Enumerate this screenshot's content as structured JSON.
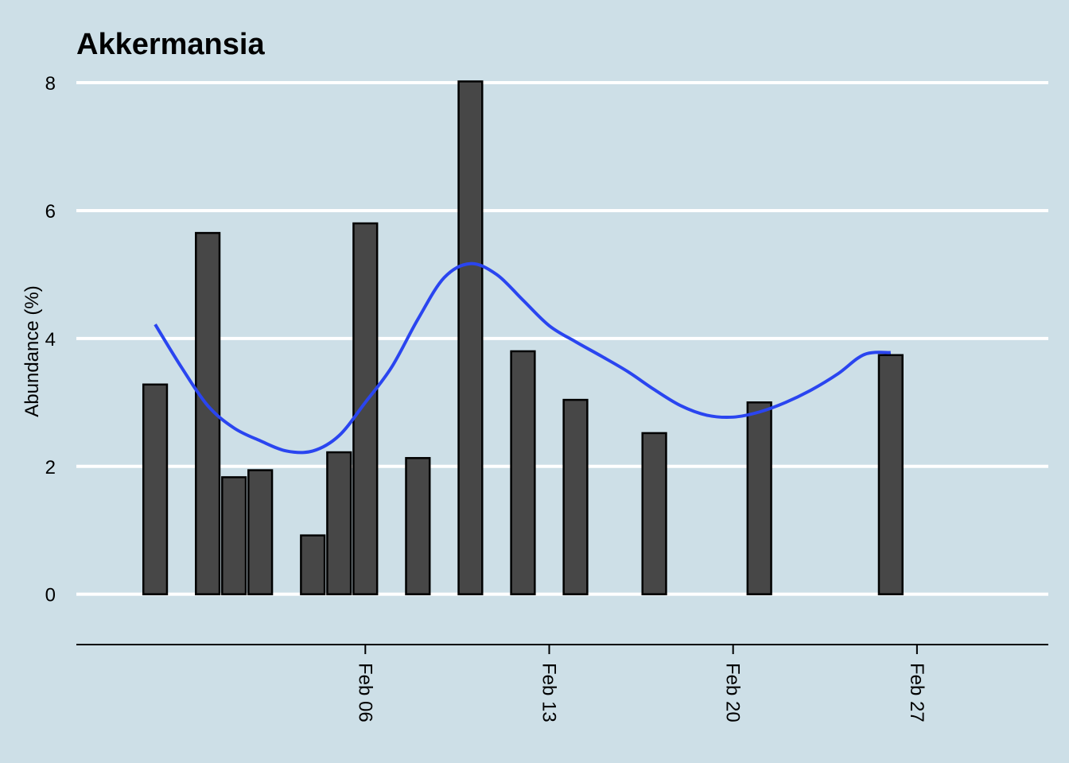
{
  "colors": {
    "background": "#cddfe7",
    "gridline": "#ffffff",
    "bar_fill": "#474747",
    "bar_stroke": "#000000",
    "smooth_line": "#2a45f0",
    "axis_line": "#000000"
  },
  "chart_data": {
    "type": "bar",
    "title": "Akkermansia",
    "xlabel": "",
    "ylabel": "Abundance (%)",
    "xlim": [
      "2023-01-26",
      "2023-03-04"
    ],
    "ylim": [
      -0.75,
      8.1
    ],
    "x_ticks": [
      {
        "date": "2023-02-06",
        "label": "Feb 06"
      },
      {
        "date": "2023-02-13",
        "label": "Feb 13"
      },
      {
        "date": "2023-02-20",
        "label": "Feb 20"
      },
      {
        "date": "2023-02-27",
        "label": "Feb 27"
      }
    ],
    "y_ticks": [
      0,
      2,
      4,
      6,
      8
    ],
    "grid": "horizontal",
    "legend": "none",
    "bars": [
      {
        "x": "2023-01-29",
        "value": 3.28
      },
      {
        "x": "2023-01-31",
        "value": 5.65
      },
      {
        "x": "2023-02-01",
        "value": 1.83
      },
      {
        "x": "2023-02-02",
        "value": 1.94
      },
      {
        "x": "2023-02-04",
        "value": 0.92
      },
      {
        "x": "2023-02-05",
        "value": 2.22
      },
      {
        "x": "2023-02-06",
        "value": 5.8
      },
      {
        "x": "2023-02-08",
        "value": 2.13
      },
      {
        "x": "2023-02-10",
        "value": 8.02
      },
      {
        "x": "2023-02-12",
        "value": 3.8
      },
      {
        "x": "2023-02-14",
        "value": 3.04
      },
      {
        "x": "2023-02-17",
        "value": 2.52
      },
      {
        "x": "2023-02-21",
        "value": 3.0
      },
      {
        "x": "2023-02-26",
        "value": 3.74
      }
    ],
    "smooth": {
      "x": [
        "2023-01-29",
        "2023-01-30",
        "2023-01-31",
        "2023-02-01",
        "2023-02-02",
        "2023-02-03",
        "2023-02-04",
        "2023-02-05",
        "2023-02-06",
        "2023-02-07",
        "2023-02-08",
        "2023-02-09",
        "2023-02-10",
        "2023-02-11",
        "2023-02-12",
        "2023-02-13",
        "2023-02-14",
        "2023-02-15",
        "2023-02-16",
        "2023-02-17",
        "2023-02-18",
        "2023-02-19",
        "2023-02-20",
        "2023-02-21",
        "2023-02-22",
        "2023-02-23",
        "2023-02-24",
        "2023-02-25",
        "2023-02-26"
      ],
      "values": [
        4.22,
        3.55,
        2.95,
        2.6,
        2.4,
        2.24,
        2.24,
        2.48,
        3.0,
        3.55,
        4.3,
        4.95,
        5.17,
        5.0,
        4.6,
        4.2,
        3.95,
        3.72,
        3.48,
        3.2,
        2.95,
        2.8,
        2.77,
        2.85,
        3.0,
        3.2,
        3.45,
        3.75,
        3.78
      ]
    }
  }
}
